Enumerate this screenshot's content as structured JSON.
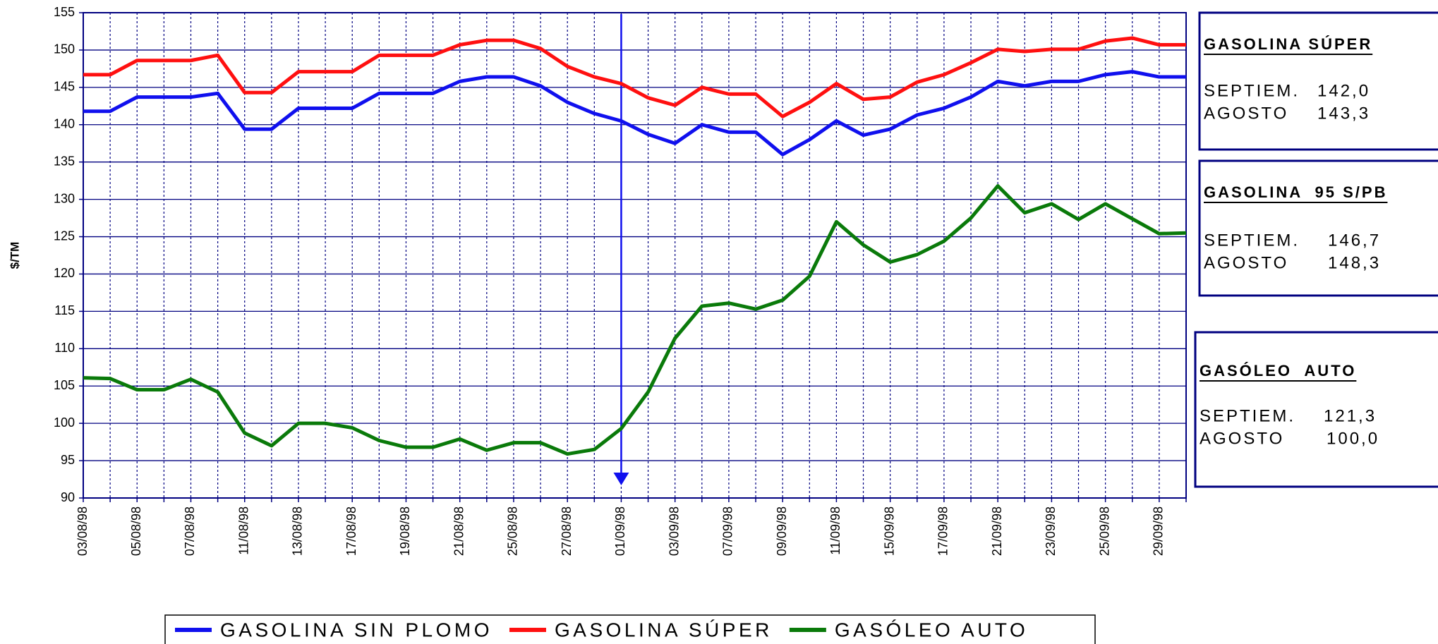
{
  "chart_data": {
    "type": "line",
    "ylabel": "$/TM",
    "categories": [
      "03/08/98",
      null,
      "05/08/98",
      null,
      "07/08/98",
      null,
      "11/08/98",
      null,
      "13/08/98",
      null,
      "17/08/98",
      null,
      "19/08/98",
      null,
      "21/08/98",
      null,
      "25/08/98",
      null,
      "27/08/98",
      null,
      "01/09/98",
      null,
      "03/09/98",
      null,
      "07/09/98",
      null,
      "09/09/98",
      null,
      "11/09/98",
      null,
      "15/09/98",
      null,
      "17/09/98",
      null,
      "21/09/98",
      null,
      "23/09/98",
      null,
      "25/09/98",
      null,
      "29/09/98",
      null
    ],
    "series": [
      {
        "name": "GASOLINA SIN PLOMO",
        "color": "#1010ee",
        "values": [
          141.8,
          141.8,
          143.7,
          143.7,
          143.7,
          144.2,
          139.4,
          139.4,
          142.2,
          142.2,
          142.2,
          144.2,
          144.2,
          144.2,
          145.8,
          146.4,
          146.4,
          145.2,
          143.0,
          141.5,
          140.5,
          138.7,
          137.5,
          140.0,
          139.0,
          139.0,
          136.0,
          138.0,
          140.5,
          138.6,
          139.4,
          141.3,
          142.2,
          143.7,
          145.8,
          145.2,
          145.8,
          145.8,
          146.7,
          147.1,
          146.4,
          146.4
        ]
      },
      {
        "name": "GASOLINA SÚPER",
        "color": "#ff1010",
        "values": [
          146.7,
          146.7,
          148.6,
          148.6,
          148.6,
          149.3,
          144.3,
          144.3,
          147.1,
          147.1,
          147.1,
          149.3,
          149.3,
          149.3,
          150.7,
          151.3,
          151.3,
          150.2,
          147.8,
          146.4,
          145.5,
          143.6,
          142.6,
          145.0,
          144.1,
          144.1,
          141.1,
          143.0,
          145.5,
          143.4,
          143.7,
          145.7,
          146.7,
          148.3,
          150.1,
          149.8,
          150.1,
          150.1,
          151.2,
          151.6,
          150.7,
          150.7
        ]
      },
      {
        "name": "GASÓLEO AUTO",
        "color": "#0a7a0a",
        "values": [
          106.1,
          106.0,
          104.5,
          104.5,
          105.9,
          104.2,
          98.7,
          97.0,
          100.0,
          100.0,
          99.4,
          97.7,
          96.8,
          96.8,
          97.9,
          96.4,
          97.4,
          97.4,
          95.9,
          96.5,
          99.3,
          104.2,
          111.4,
          115.7,
          116.1,
          115.3,
          116.5,
          119.7,
          127.0,
          123.9,
          121.6,
          122.6,
          124.4,
          127.5,
          131.8,
          128.2,
          129.4,
          127.3,
          129.4,
          127.4,
          125.4,
          125.5
        ]
      }
    ],
    "ylim": [
      90,
      155
    ],
    "yticks": [
      90,
      95,
      100,
      105,
      110,
      115,
      120,
      125,
      130,
      135,
      140,
      145,
      150,
      155
    ],
    "grid": true,
    "legend": "bottom",
    "info_boxes": [
      {
        "title": "GASOLINA SÚPER",
        "rows": [
          {
            "label": "SEPTIEM.",
            "value": "142,0"
          },
          {
            "label": "AGOSTO",
            "value": "143,3"
          }
        ]
      },
      {
        "title": "GASOLINA  95 S/PB",
        "rows": [
          {
            "label": "SEPTIEM.",
            "value": "146,7"
          },
          {
            "label": "AGOSTO",
            "value": "148,3"
          }
        ]
      },
      {
        "title": "GASÓLEO  AUTO",
        "rows": [
          {
            "label": "SEPTIEM.",
            "value": "121,3"
          },
          {
            "label": "AGOSTO",
            "value": "100,0"
          }
        ]
      }
    ]
  }
}
